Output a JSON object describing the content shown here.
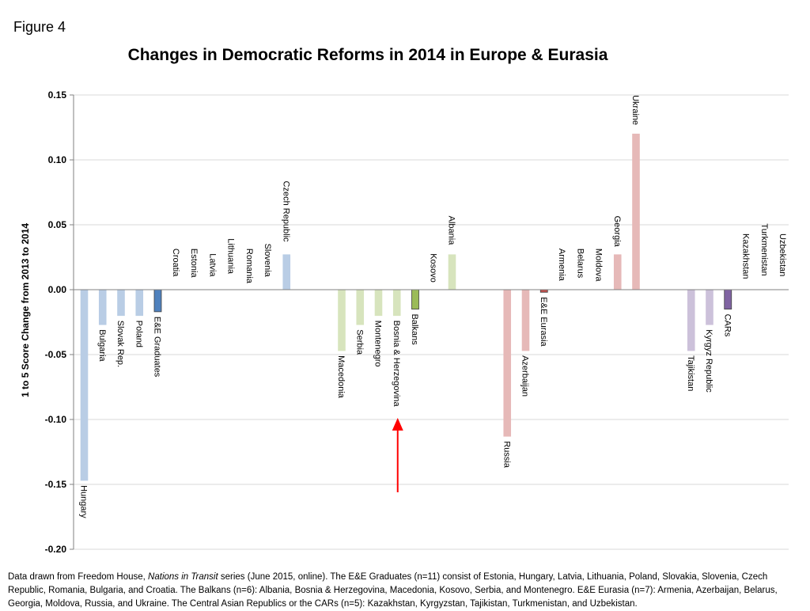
{
  "figure_label": "Figure 4",
  "chart_data": {
    "type": "bar",
    "title": "Changes in Democratic Reforms in 2014 in Europe & Eurasia",
    "xlabel": "",
    "ylabel": "1 to 5 Score Change from 2013 to 2014",
    "ylim": [
      -0.2,
      0.15
    ],
    "yticks": [
      "-0.20",
      "-0.15",
      "-0.10",
      "-0.05",
      "0.00",
      "0.05",
      "0.10",
      "0.15"
    ],
    "grid": true,
    "categories": [
      "Hungary",
      "Bulgaria",
      "Slovak Rep.",
      "Poland",
      "E&E Graduates",
      "Croatia",
      "Estonia",
      "Latvia",
      "Lithuania",
      "Romania",
      "Slovenia",
      "Czech Republic",
      "Macedonia",
      "Serbia",
      "Montenegro",
      "Bosnia & Herzegovina",
      "Balkans",
      "Kosovo",
      "Albania",
      "Russia",
      "Azerbaijan",
      "E&E Eurasia",
      "Armenia",
      "Belarus",
      "Moldova",
      "Georgia",
      "Ukraine",
      "Tajikistan",
      "Kyrgyz Republic",
      "CARs",
      "Kazakhstan",
      "Turkmenistan",
      "Uzbekistan"
    ],
    "values": [
      -0.147,
      -0.027,
      -0.02,
      -0.02,
      -0.017,
      0,
      0,
      0,
      0,
      0,
      0,
      0.027,
      -0.047,
      -0.027,
      -0.02,
      -0.02,
      -0.015,
      0,
      0.027,
      -0.113,
      -0.047,
      -0.002,
      0,
      0,
      0,
      0.027,
      0.12,
      -0.047,
      -0.027,
      -0.015,
      0,
      0,
      0
    ],
    "groups": [
      "graduates",
      "graduates",
      "graduates",
      "graduates",
      "graduates-avg",
      "graduates",
      "graduates",
      "graduates",
      "graduates",
      "graduates",
      "graduates",
      "graduates",
      "balkans",
      "balkans",
      "balkans",
      "balkans",
      "balkans-avg",
      "balkans",
      "balkans",
      "eurasia",
      "eurasia",
      "eurasia-avg",
      "eurasia",
      "eurasia",
      "eurasia",
      "eurasia",
      "eurasia",
      "cars",
      "cars",
      "cars-avg",
      "cars",
      "cars",
      "cars"
    ],
    "colors": {
      "graduates": "#b9cde5",
      "graduates-avg": "#4f81bd",
      "balkans": "#d7e4bd",
      "balkans-avg": "#9bbb59",
      "eurasia": "#e6b9b8",
      "eurasia-avg": "#c0504d",
      "cars": "#ccc1da",
      "cars-avg": "#8064a2"
    },
    "annotation": {
      "type": "arrow",
      "points_to": "Bosnia & Herzegovina",
      "color": "#ff0000"
    }
  },
  "footnote": {
    "part1": "Data drawn from  Freedom House, ",
    "source_italic": "Nations in Transit",
    "part2": " series (June 2015, online). The E&E Graduates (n=11) consist of Estonia, Hungary, Latvia, Lithuania, Poland, Slovakia, Slovenia, Czech Republic, Romania, Bulgaria, and Croatia. The Balkans (n=6): Albania, Bosnia & Herzegovina, Macedonia, Kosovo, Serbia, and Montenegro. E&E Eurasia (n=7): Armenia, Azerbaijan, Belarus, Georgia, Moldova, Russia, and Ukraine.  The Central Asian Republics or the CARs (n=5): Kazakhstan, Kyrgyzstan, Tajikistan, Turkmenistan, and Uzbekistan."
  }
}
